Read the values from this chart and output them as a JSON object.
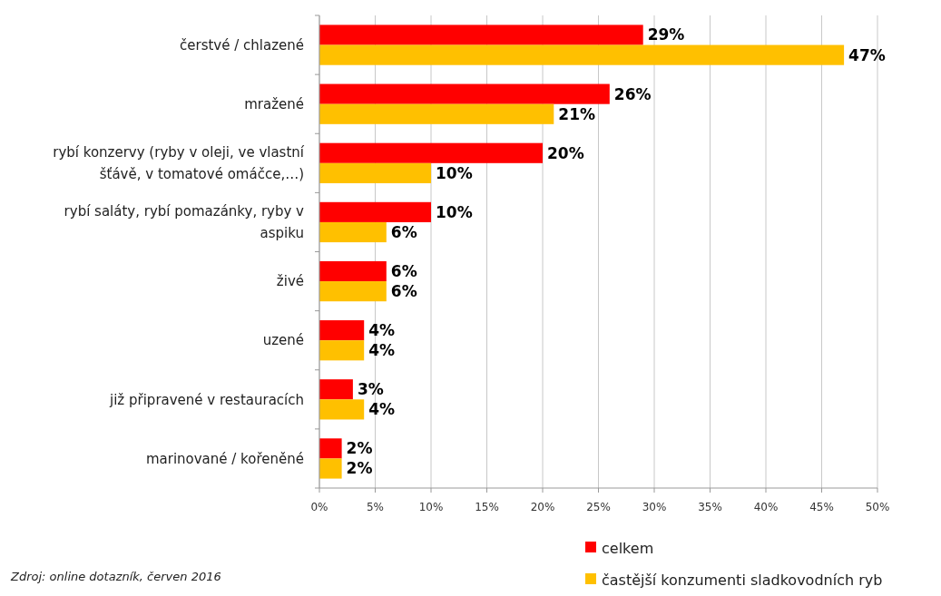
{
  "chart_data": {
    "type": "bar",
    "orientation": "horizontal",
    "categories": [
      "čerstvé / chlazené",
      "mražené",
      "rybí konzervy (ryby v oleji, ve vlastní šťávě, v tomatové omáčce,…)",
      "rybí saláty, rybí pomazánky, ryby v aspiku",
      "živé",
      "uzené",
      "již připravené v restauracích",
      "marinované / kořeněné"
    ],
    "series": [
      {
        "name": "celkem",
        "color": "#ff0000",
        "values": [
          29,
          26,
          20,
          10,
          6,
          4,
          3,
          2
        ],
        "value_labels": [
          "29%",
          "26%",
          "20%",
          "10%",
          "6%",
          "4%",
          "3%",
          "2%"
        ]
      },
      {
        "name": "častější konzumenti sladkovodních ryb",
        "color": "#ffc000",
        "values": [
          47,
          21,
          10,
          6,
          6,
          4,
          4,
          2
        ],
        "value_labels": [
          "47%",
          "21%",
          "10%",
          "6%",
          "6%",
          "4%",
          "4%",
          "2%"
        ]
      }
    ],
    "xlim": [
      0,
      50
    ],
    "xticks": [
      {
        "value": 0,
        "label": "0%"
      },
      {
        "value": 5,
        "label": "5%"
      },
      {
        "value": 10,
        "label": "10%"
      },
      {
        "value": 15,
        "label": "15%"
      },
      {
        "value": 20,
        "label": "20%"
      },
      {
        "value": 25,
        "label": "25%"
      },
      {
        "value": 30,
        "label": "30%"
      },
      {
        "value": 35,
        "label": "35%"
      },
      {
        "value": 40,
        "label": "40%"
      },
      {
        "value": 45,
        "label": "45%"
      },
      {
        "value": 50,
        "label": "50%"
      }
    ],
    "grid": "x",
    "legend": "bottom right",
    "annotations": [
      "Zdroj: online dotazník, červen 2016"
    ]
  }
}
